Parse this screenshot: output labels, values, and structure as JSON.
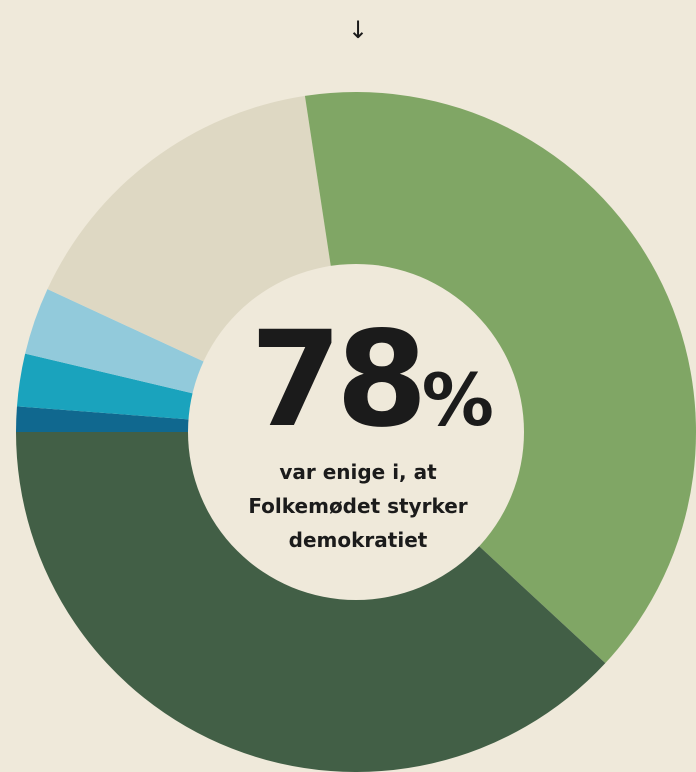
{
  "chart_data": {
    "type": "donut",
    "top_marker": "↓",
    "center_value": "78",
    "center_unit": "%",
    "center_lines": [
      "var enige i, at",
      "Folkemødet styrker",
      "demokratiet"
    ],
    "categories": [
      null,
      null,
      null,
      null,
      null,
      null
    ],
    "values": [
      1.2,
      2.5,
      3.2,
      15.7,
      39.3,
      38.1
    ],
    "colors": [
      "#10688f",
      "#1aa3bd",
      "#92cadb",
      "#ded8c3",
      "#80a665",
      "#425f46"
    ]
  }
}
